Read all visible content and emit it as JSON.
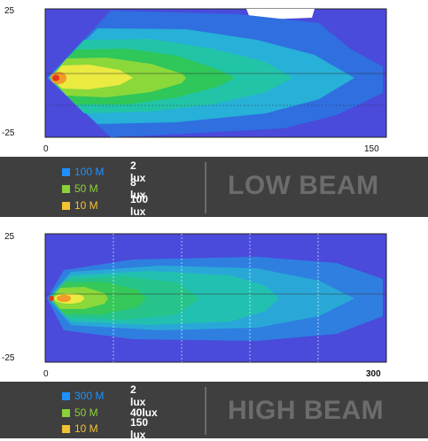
{
  "chart_data": [
    {
      "type": "heatmap",
      "title": "LOW BEAM",
      "x_ticks": [
        "0",
        "150"
      ],
      "y_ticks": [
        "25",
        "-25"
      ],
      "xlim": [
        0,
        150
      ],
      "ylim": [
        -25,
        25
      ],
      "legend": [
        {
          "distance": "100 M",
          "lux": "2 lux",
          "color": "#1e90ff"
        },
        {
          "distance": "50 M",
          "lux": "8 lux",
          "color": "#8bd13a"
        },
        {
          "distance": "10 M",
          "lux": "100 lux",
          "color": "#f2c232"
        }
      ]
    },
    {
      "type": "heatmap",
      "title": "HIGH BEAM",
      "x_ticks": [
        "0",
        "300"
      ],
      "y_ticks": [
        "25",
        "-25"
      ],
      "xlim": [
        0,
        300
      ],
      "ylim": [
        -25,
        25
      ],
      "legend": [
        {
          "distance": "300 M",
          "lux": "2 lux",
          "color": "#1e90ff"
        },
        {
          "distance": "50 M",
          "lux": "40lux",
          "color": "#8bd13a"
        },
        {
          "distance": "10 M",
          "lux": "150 lux",
          "color": "#f2c232"
        }
      ]
    }
  ],
  "colors": {
    "background": "#4a4adb",
    "contours": [
      "#4a4adb",
      "#2f7fe0",
      "#29b6d8",
      "#22c7a0",
      "#35c85a",
      "#8bdc3a",
      "#e8e83a",
      "#f39a2a",
      "#e03a1e"
    ]
  }
}
